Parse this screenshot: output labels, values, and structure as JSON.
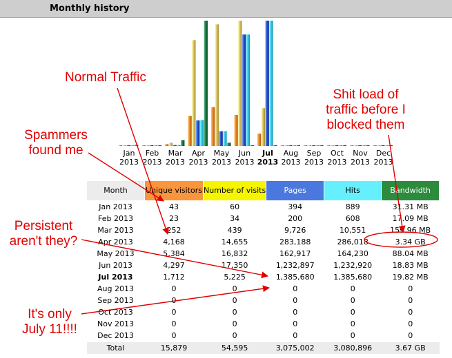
{
  "header": {
    "title": "Monthly history"
  },
  "chart_data": {
    "type": "bar",
    "title": "Monthly history",
    "categories": [
      "Jan 2013",
      "Feb 2013",
      "Mar 2013",
      "Apr 2013",
      "May 2013",
      "Jun 2013",
      "Jul 2013",
      "Aug 2013",
      "Sep 2013",
      "Oct 2013",
      "Nov 2013",
      "Dec 2013"
    ],
    "category_months": [
      "Jan",
      "Feb",
      "Mar",
      "Apr",
      "May",
      "Jun",
      "Jul",
      "Aug",
      "Sep",
      "Oct",
      "Nov",
      "Dec"
    ],
    "category_years": [
      "2013",
      "2013",
      "2013",
      "2013",
      "2013",
      "2013",
      "2013",
      "2013",
      "2013",
      "2013",
      "2013",
      "2013"
    ],
    "current_index": 6,
    "series": [
      {
        "name": "Unique visitors",
        "color": "#e8882f",
        "values": [
          43,
          23,
          252,
          4168,
          5384,
          4297,
          1712,
          0,
          0,
          0,
          0,
          0
        ]
      },
      {
        "name": "Number of visits",
        "color": "#d8c165",
        "values": [
          60,
          34,
          439,
          14655,
          16832,
          17350,
          5225,
          0,
          0,
          0,
          0,
          0
        ]
      },
      {
        "name": "Pages",
        "color": "#2f57c8",
        "values": [
          394,
          200,
          9726,
          283188,
          162917,
          1232897,
          1385680,
          0,
          0,
          0,
          0,
          0
        ]
      },
      {
        "name": "Hits",
        "color": "#3fc8e8",
        "values": [
          889,
          608,
          10551,
          286018,
          164230,
          1232920,
          1385680,
          0,
          0,
          0,
          0,
          0
        ]
      },
      {
        "name": "Bandwidth",
        "color": "#1f7a4a",
        "values": [
          31.31,
          17.09,
          159.96,
          3420.16,
          88.04,
          18.83,
          19.82,
          0,
          0,
          0,
          0,
          0
        ]
      }
    ],
    "axis_scales": {
      "visitors_max": 17350,
      "pages_max": 1385680,
      "bandwidth_max": 3420.16
    }
  },
  "table": {
    "headers": [
      "Month",
      "Unique visitors",
      "Number of visits",
      "Pages",
      "Hits",
      "Bandwidth"
    ],
    "rows": [
      [
        "Jan 2013",
        "43",
        "60",
        "394",
        "889",
        "31.31 MB"
      ],
      [
        "Feb 2013",
        "23",
        "34",
        "200",
        "608",
        "17.09 MB"
      ],
      [
        "Mar 2013",
        "252",
        "439",
        "9,726",
        "10,551",
        "159.96 MB"
      ],
      [
        "Apr 2013",
        "4,168",
        "14,655",
        "283,188",
        "286,018",
        "3.34 GB"
      ],
      [
        "May 2013",
        "5,384",
        "16,832",
        "162,917",
        "164,230",
        "88.04 MB"
      ],
      [
        "Jun 2013",
        "4,297",
        "17,350",
        "1,232,897",
        "1,232,920",
        "18.83 MB"
      ],
      [
        "Jul 2013",
        "1,712",
        "5,225",
        "1,385,680",
        "1,385,680",
        "19.82 MB"
      ],
      [
        "Aug 2013",
        "0",
        "0",
        "0",
        "0",
        "0"
      ],
      [
        "Sep 2013",
        "0",
        "0",
        "0",
        "0",
        "0"
      ],
      [
        "Oct 2013",
        "0",
        "0",
        "0",
        "0",
        "0"
      ],
      [
        "Nov 2013",
        "0",
        "0",
        "0",
        "0",
        "0"
      ],
      [
        "Dec 2013",
        "0",
        "0",
        "0",
        "0",
        "0"
      ]
    ],
    "bold_row": 6,
    "total": [
      "Total",
      "15,879",
      "54,595",
      "3,075,002",
      "3,080,896",
      "3.67 GB"
    ]
  },
  "annotations": {
    "normal_traffic": "Normal Traffic",
    "spammers_1": "Spammers",
    "spammers_2": "found me",
    "load_1": "Shit load of",
    "load_2": "traffic before I",
    "load_3": "blocked them",
    "persistent_1": "Persistent",
    "persistent_2": "aren't they?",
    "only_1": "It's only",
    "only_2": "July 11!!!!",
    "color": "#e00000"
  }
}
